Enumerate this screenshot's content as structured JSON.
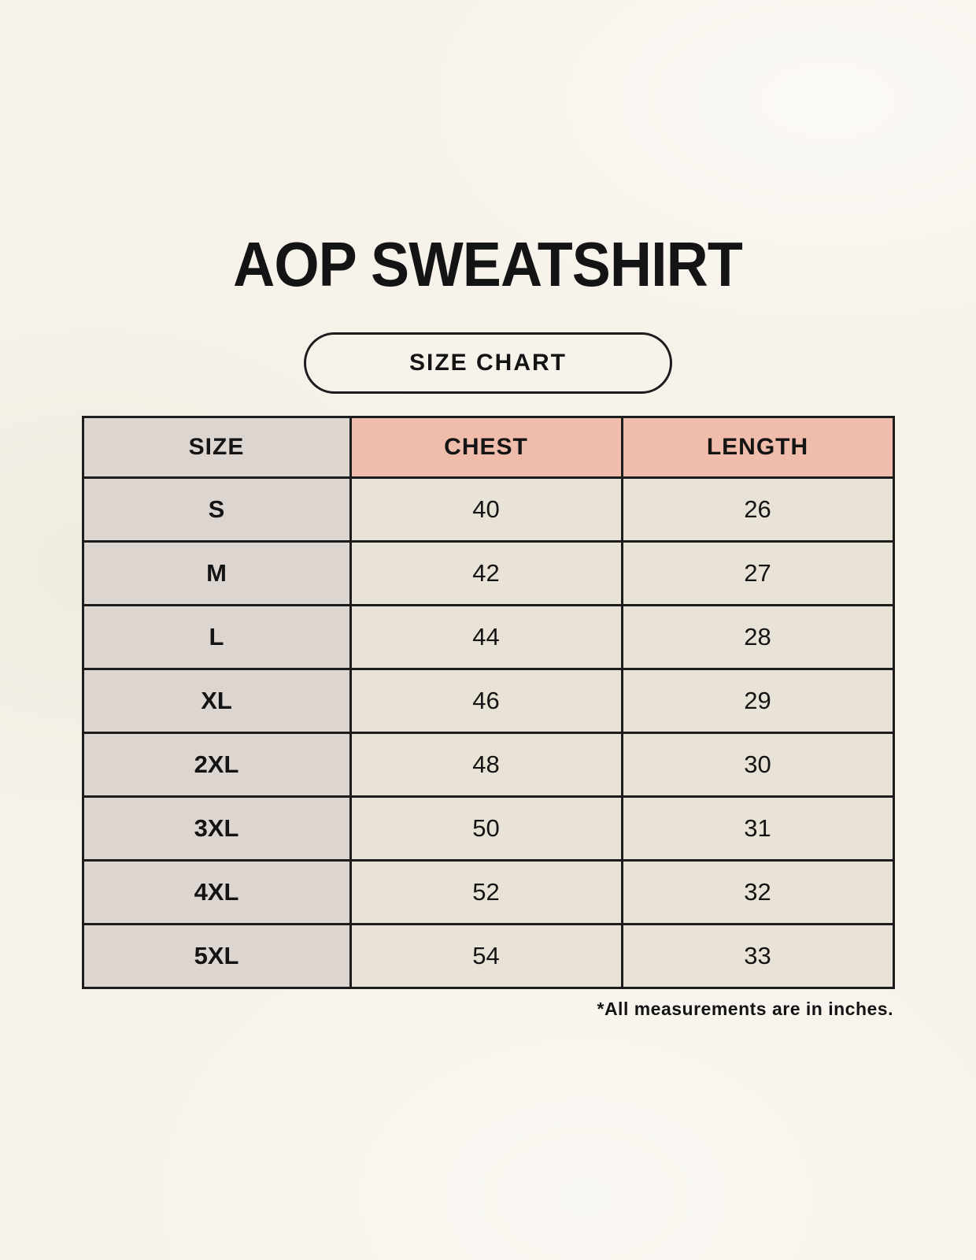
{
  "chart_data": {
    "type": "table",
    "title": "AOP SWEATSHIRT",
    "subtitle": "SIZE CHART",
    "columns": [
      "SIZE",
      "CHEST",
      "LENGTH"
    ],
    "rows": [
      [
        "S",
        "40",
        "26"
      ],
      [
        "M",
        "42",
        "27"
      ],
      [
        "L",
        "44",
        "28"
      ],
      [
        "XL",
        "46",
        "29"
      ],
      [
        "2XL",
        "48",
        "30"
      ],
      [
        "3XL",
        "50",
        "31"
      ],
      [
        "4XL",
        "52",
        "32"
      ],
      [
        "5XL",
        "54",
        "33"
      ]
    ],
    "note": "*All measurements are in inches.",
    "layout_hints": {
      "units": "inches",
      "header_accent_columns": [
        "CHEST",
        "LENGTH"
      ]
    }
  },
  "colors": {
    "background": "#f7f3eb",
    "header_accent": "#f0bcab",
    "size_column": "#dcd5d0",
    "data_cell": "#e9e2d6",
    "border": "#1c1c1c",
    "text": "#141414"
  }
}
